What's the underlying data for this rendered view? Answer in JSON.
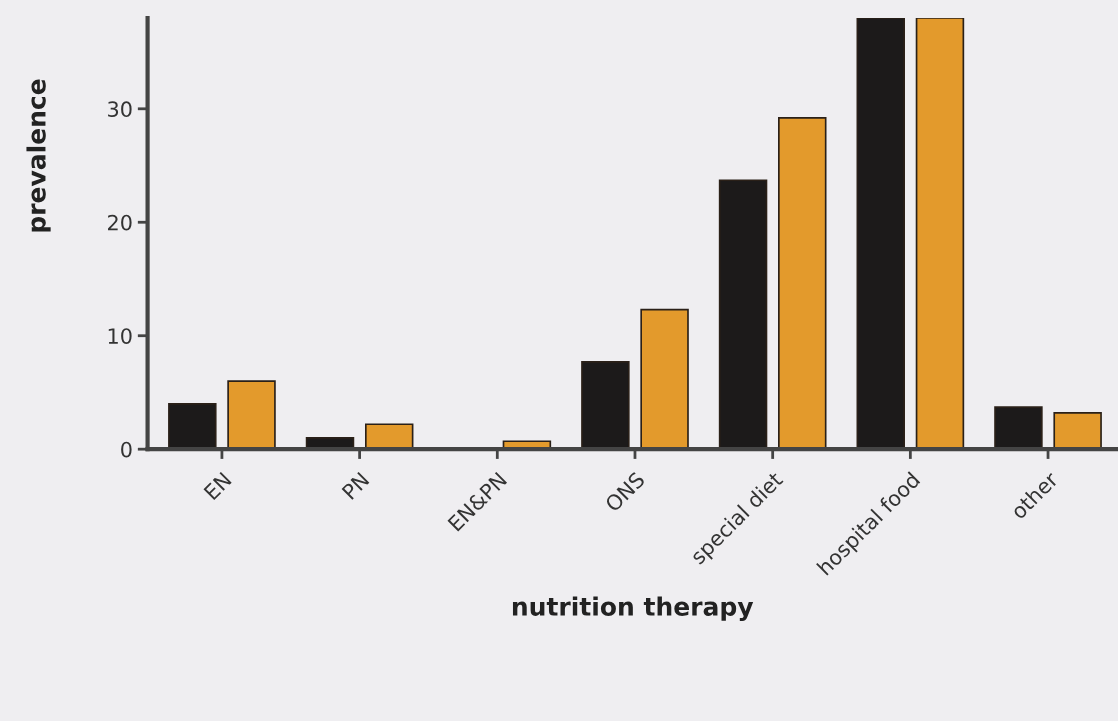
{
  "chart_data": {
    "type": "bar",
    "xlabel": "nutrition therapy",
    "ylabel": "prevalence",
    "categories": [
      "EN",
      "PN",
      "EN&PN",
      "ONS",
      "special diet",
      "hospital food",
      "other"
    ],
    "series": [
      {
        "color": "#1c1a1a",
        "values": [
          4,
          1,
          0,
          7.7,
          23.7,
          38,
          3.7
        ]
      },
      {
        "color": "#e39a2c",
        "values": [
          6,
          2.2,
          0.7,
          12.3,
          29.2,
          38,
          3.2
        ]
      }
    ],
    "ylim": [
      0,
      38
    ],
    "yticks": [
      0,
      10,
      20,
      30
    ],
    "grid": false
  }
}
